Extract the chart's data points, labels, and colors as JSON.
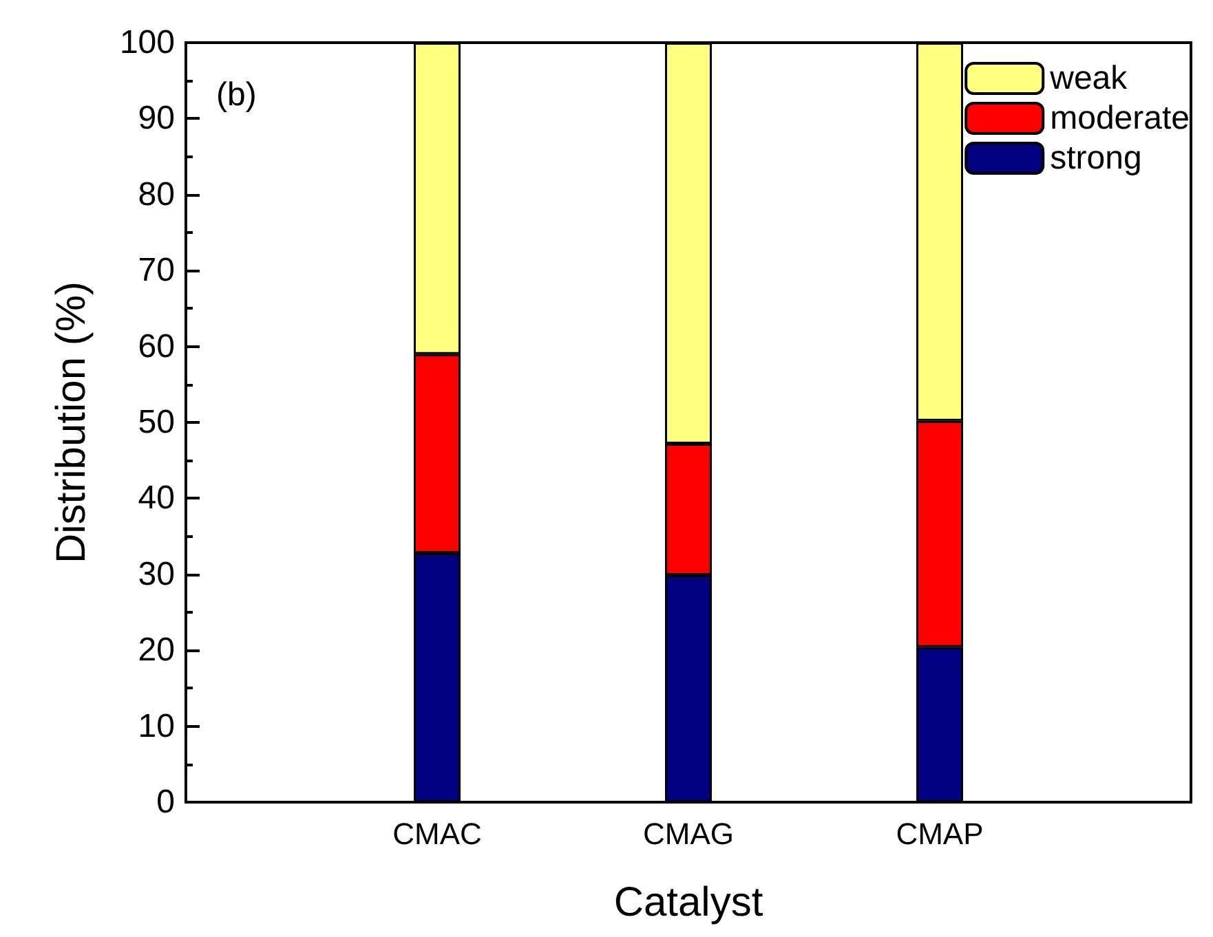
{
  "chart_data": {
    "type": "bar",
    "stacked": true,
    "xlabel": "Catalyst",
    "ylabel": "Distribution (%)",
    "categories": [
      "CMAC",
      "CMAG",
      "CMAP"
    ],
    "series": [
      {
        "name": "strong",
        "color": "#000080",
        "values": [
          32.8,
          29.9,
          20.4
        ]
      },
      {
        "name": "moderate",
        "color": "#ff0000",
        "values": [
          26.2,
          17.3,
          29.8
        ]
      },
      {
        "name": "weak",
        "color": "#ffff80",
        "values": [
          41.0,
          52.8,
          49.8
        ]
      }
    ],
    "ylim": [
      0,
      100
    ],
    "yticks": [
      0,
      10,
      20,
      30,
      40,
      50,
      60,
      70,
      80,
      90,
      100
    ],
    "legend": "top right",
    "grid": false,
    "annotations": [
      "(b)"
    ]
  }
}
